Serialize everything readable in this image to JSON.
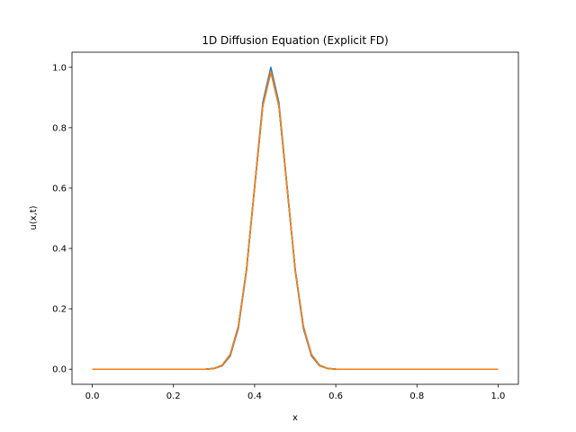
{
  "chart_data": {
    "type": "line",
    "title": "1D Diffusion Equation (Explicit FD)",
    "xlabel": "x",
    "ylabel": "u(x,t)",
    "xlim": [
      -0.05,
      1.05
    ],
    "ylim": [
      -0.05,
      1.05
    ],
    "xticks": [
      0.0,
      0.2,
      0.4,
      0.6,
      0.8,
      1.0
    ],
    "xtick_labels": [
      "0.0",
      "0.2",
      "0.4",
      "0.6",
      "0.8",
      "1.0"
    ],
    "yticks": [
      0.0,
      0.2,
      0.4,
      0.6,
      0.8,
      1.0
    ],
    "ytick_labels": [
      "0.0",
      "0.2",
      "0.4",
      "0.6",
      "0.8",
      "1.0"
    ],
    "grid": false,
    "x": [
      0.0,
      0.02,
      0.04,
      0.06,
      0.08,
      0.1,
      0.12,
      0.14,
      0.16,
      0.18,
      0.2,
      0.22,
      0.24,
      0.26,
      0.28,
      0.3,
      0.32,
      0.34,
      0.36,
      0.38,
      0.4,
      0.42,
      0.44,
      0.46,
      0.48,
      0.5,
      0.52,
      0.54,
      0.56,
      0.58,
      0.6,
      0.62,
      0.64,
      0.66,
      0.68,
      0.7,
      0.72,
      0.74,
      0.76,
      0.78,
      0.8,
      0.82,
      0.84,
      0.86,
      0.88,
      0.9,
      0.92,
      0.94,
      0.96,
      0.98,
      1.0
    ],
    "series": [
      {
        "color": "#1f77b4",
        "values": [
          0,
          0,
          0,
          0,
          0,
          0,
          0,
          0,
          0,
          0,
          0,
          0,
          0,
          0,
          0.0002,
          0.0019,
          0.0111,
          0.0439,
          0.1353,
          0.3247,
          0.6065,
          0.8825,
          1.0,
          0.8825,
          0.6065,
          0.3247,
          0.1353,
          0.0439,
          0.0111,
          0.0019,
          0.0002,
          0,
          0,
          0,
          0,
          0,
          0,
          0,
          0,
          0,
          0,
          0,
          0,
          0,
          0,
          0,
          0,
          0,
          0,
          0,
          0
        ]
      },
      {
        "color": "#ff7f0e",
        "values": [
          0,
          0,
          0,
          0,
          0,
          0,
          0,
          0,
          0,
          0,
          0,
          0,
          0,
          0,
          0.0004,
          0.0025,
          0.013,
          0.0484,
          0.1419,
          0.33,
          0.6025,
          0.8716,
          0.985,
          0.8716,
          0.6025,
          0.33,
          0.1419,
          0.0484,
          0.013,
          0.0025,
          0.0004,
          0,
          0,
          0,
          0,
          0,
          0,
          0,
          0,
          0,
          0,
          0,
          0,
          0,
          0,
          0,
          0,
          0,
          0,
          0,
          0
        ]
      },
      {
        "color": "#2ca02c",
        "values": [
          0,
          0,
          0,
          0,
          0,
          0,
          0,
          0,
          0,
          0,
          0,
          0,
          0,
          0,
          0.0004,
          0.0025,
          0.013,
          0.0484,
          0.1419,
          0.33,
          0.6025,
          0.8716,
          0.985,
          0.8716,
          0.6025,
          0.33,
          0.1419,
          0.0484,
          0.013,
          0.0025,
          0.0004,
          0,
          0,
          0,
          0,
          0,
          0,
          0,
          0,
          0,
          0,
          0,
          0,
          0,
          0,
          0,
          0,
          0,
          0,
          0,
          0
        ]
      },
      {
        "color": "#d62728",
        "values": [
          0,
          0,
          0,
          0,
          0,
          0,
          0,
          0,
          0,
          0,
          0,
          0,
          0,
          0,
          0.0004,
          0.0025,
          0.013,
          0.0484,
          0.1419,
          0.33,
          0.6025,
          0.8716,
          0.985,
          0.8716,
          0.6025,
          0.33,
          0.1419,
          0.0484,
          0.013,
          0.0025,
          0.0004,
          0,
          0,
          0,
          0,
          0,
          0,
          0,
          0,
          0,
          0,
          0,
          0,
          0,
          0,
          0,
          0,
          0,
          0,
          0,
          0
        ]
      },
      {
        "color": "#9467bd",
        "values": [
          0,
          0,
          0,
          0,
          0,
          0,
          0,
          0,
          0,
          0,
          0,
          0,
          0,
          0,
          0.0004,
          0.0025,
          0.013,
          0.0484,
          0.1419,
          0.33,
          0.6025,
          0.8716,
          0.985,
          0.8716,
          0.6025,
          0.33,
          0.1419,
          0.0484,
          0.013,
          0.0025,
          0.0004,
          0,
          0,
          0,
          0,
          0,
          0,
          0,
          0,
          0,
          0,
          0,
          0,
          0,
          0,
          0,
          0,
          0,
          0,
          0,
          0
        ]
      },
      {
        "color": "#8c564b",
        "values": [
          0,
          0,
          0,
          0,
          0,
          0,
          0,
          0,
          0,
          0,
          0,
          0,
          0,
          0,
          0.0004,
          0.0025,
          0.013,
          0.0484,
          0.1419,
          0.33,
          0.6025,
          0.8716,
          0.985,
          0.8716,
          0.6025,
          0.33,
          0.1419,
          0.0484,
          0.013,
          0.0025,
          0.0004,
          0,
          0,
          0,
          0,
          0,
          0,
          0,
          0,
          0,
          0,
          0,
          0,
          0,
          0,
          0,
          0,
          0,
          0,
          0,
          0
        ]
      },
      {
        "color": "#e377c2",
        "values": [
          0,
          0,
          0,
          0,
          0,
          0,
          0,
          0,
          0,
          0,
          0,
          0,
          0,
          0,
          0.0004,
          0.0025,
          0.013,
          0.0484,
          0.1419,
          0.33,
          0.6025,
          0.8716,
          0.985,
          0.8716,
          0.6025,
          0.33,
          0.1419,
          0.0484,
          0.013,
          0.0025,
          0.0004,
          0,
          0,
          0,
          0,
          0,
          0,
          0,
          0,
          0,
          0,
          0,
          0,
          0,
          0,
          0,
          0,
          0,
          0,
          0,
          0
        ]
      },
      {
        "color": "#7f7f7f",
        "values": [
          0,
          0,
          0,
          0,
          0,
          0,
          0,
          0,
          0,
          0,
          0,
          0,
          0,
          0,
          0.0004,
          0.0025,
          0.013,
          0.0484,
          0.1419,
          0.33,
          0.6025,
          0.8716,
          0.985,
          0.8716,
          0.6025,
          0.33,
          0.1419,
          0.0484,
          0.013,
          0.0025,
          0.0004,
          0,
          0,
          0,
          0,
          0,
          0,
          0,
          0,
          0,
          0,
          0,
          0,
          0,
          0,
          0,
          0,
          0,
          0,
          0,
          0
        ]
      },
      {
        "color": "#bcbd22",
        "values": [
          0,
          0,
          0,
          0,
          0,
          0,
          0,
          0,
          0,
          0,
          0,
          0,
          0,
          0,
          0.0004,
          0.0025,
          0.013,
          0.0484,
          0.1419,
          0.33,
          0.6025,
          0.8716,
          0.985,
          0.8716,
          0.6025,
          0.33,
          0.1419,
          0.0484,
          0.013,
          0.0025,
          0.0004,
          0,
          0,
          0,
          0,
          0,
          0,
          0,
          0,
          0,
          0,
          0,
          0,
          0,
          0,
          0,
          0,
          0,
          0,
          0,
          0
        ]
      },
      {
        "color": "#17becf",
        "values": [
          0,
          0,
          0,
          0,
          0,
          0,
          0,
          0,
          0,
          0,
          0,
          0,
          0,
          0,
          0.0004,
          0.0025,
          0.013,
          0.0484,
          0.1419,
          0.33,
          0.6025,
          0.8716,
          0.985,
          0.8716,
          0.6025,
          0.33,
          0.1419,
          0.0484,
          0.013,
          0.0025,
          0.0004,
          0,
          0,
          0,
          0,
          0,
          0,
          0,
          0,
          0,
          0,
          0,
          0,
          0,
          0,
          0,
          0,
          0,
          0,
          0,
          0
        ]
      },
      {
        "color": "#1f77b4",
        "values": [
          0,
          0,
          0,
          0,
          0,
          0,
          0,
          0,
          0,
          0,
          0,
          0,
          0,
          0,
          0.0004,
          0.0025,
          0.013,
          0.0484,
          0.1419,
          0.33,
          0.6025,
          0.8716,
          0.985,
          0.8716,
          0.6025,
          0.33,
          0.1419,
          0.0484,
          0.013,
          0.0025,
          0.0004,
          0,
          0,
          0,
          0,
          0,
          0,
          0,
          0,
          0,
          0,
          0,
          0,
          0,
          0,
          0,
          0,
          0,
          0,
          0,
          0
        ]
      },
      {
        "color": "#ff7f0e",
        "values": [
          0,
          0,
          0,
          0,
          0,
          0,
          0,
          0,
          0,
          0,
          0,
          0,
          0,
          0,
          0.0004,
          0.0025,
          0.013,
          0.0484,
          0.1419,
          0.33,
          0.6025,
          0.8716,
          0.985,
          0.8716,
          0.6025,
          0.33,
          0.1419,
          0.0484,
          0.013,
          0.0025,
          0.0004,
          0,
          0,
          0,
          0,
          0,
          0,
          0,
          0,
          0,
          0,
          0,
          0,
          0,
          0,
          0,
          0,
          0,
          0,
          0,
          0
        ]
      }
    ]
  }
}
